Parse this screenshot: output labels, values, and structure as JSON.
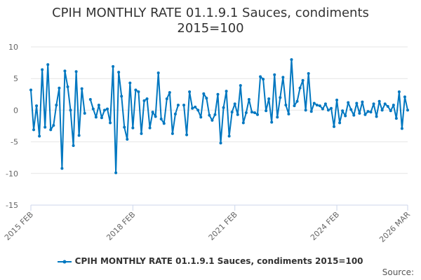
{
  "chart_data": {
    "type": "line",
    "title_line1": "CPIH MONTHLY RATE 01.1.9.1 Sauces, condiments",
    "title_line2": "2015=100",
    "start": "2015 FEB",
    "end": "2026 MAR",
    "x_tick_labels": [
      "2015 FEB",
      "2018 FEB",
      "2021 FEB",
      "2024 FEB",
      "2026 MAR"
    ],
    "x_tick_index": [
      0,
      36,
      72,
      108,
      133
    ],
    "ylim": [
      -15,
      10
    ],
    "y_ticks": [
      10,
      5,
      0,
      -5,
      -10,
      -15
    ],
    "grid": true,
    "legend_position": "bottom",
    "series": [
      {
        "name": "CPIH MONTHLY RATE 01.1.9.1 Sauces, condiments 2015=100",
        "color": "#0077c0",
        "values": [
          3.2,
          -3.1,
          0.7,
          -4.1,
          6.4,
          -2.7,
          7.2,
          -3.1,
          -2.4,
          0.8,
          3.5,
          -9.2,
          6.2,
          3.7,
          0.0,
          -5.6,
          6.1,
          -4.0,
          3.4,
          -0.5,
          null,
          1.7,
          0.2,
          -1.1,
          0.8,
          -1.2,
          0.0,
          0.2,
          -2.0,
          6.9,
          -9.9,
          6.0,
          2.2,
          -2.7,
          -4.6,
          4.3,
          -2.8,
          3.2,
          2.9,
          -3.7,
          1.5,
          1.8,
          -2.8,
          -0.3,
          -1.0,
          5.9,
          -1.4,
          -2.1,
          1.8,
          2.8,
          -3.7,
          -0.6,
          0.8,
          null,
          0.8,
          -3.9,
          2.9,
          0.3,
          0.5,
          0.0,
          -1.1,
          2.6,
          1.9,
          -0.8,
          -1.6,
          -0.7,
          2.5,
          -5.2,
          0.4,
          3.0,
          -4.1,
          -0.3,
          1.0,
          -0.7,
          3.9,
          -2.0,
          -0.4,
          1.7,
          -0.3,
          -0.4,
          -0.7,
          5.3,
          4.9,
          -0.1,
          1.8,
          -1.9,
          5.6,
          -1.1,
          2.0,
          5.2,
          0.8,
          -0.6,
          8.0,
          0.7,
          1.4,
          3.5,
          4.7,
          0.0,
          5.8,
          -0.2,
          1.1,
          0.8,
          0.7,
          0.2,
          1.0,
          0.0,
          0.3,
          -2.6,
          1.6,
          -2.0,
          -0.1,
          -0.9,
          1.2,
          0.1,
          -0.8,
          1.1,
          -0.5,
          1.3,
          -0.7,
          -0.2,
          -0.3,
          1.0,
          -1.0,
          1.4,
          0.0,
          1.0,
          0.6,
          -0.1,
          0.8,
          -1.3,
          2.9,
          -2.9,
          2.1,
          0.0
        ]
      }
    ],
    "source_label": "Source:"
  }
}
